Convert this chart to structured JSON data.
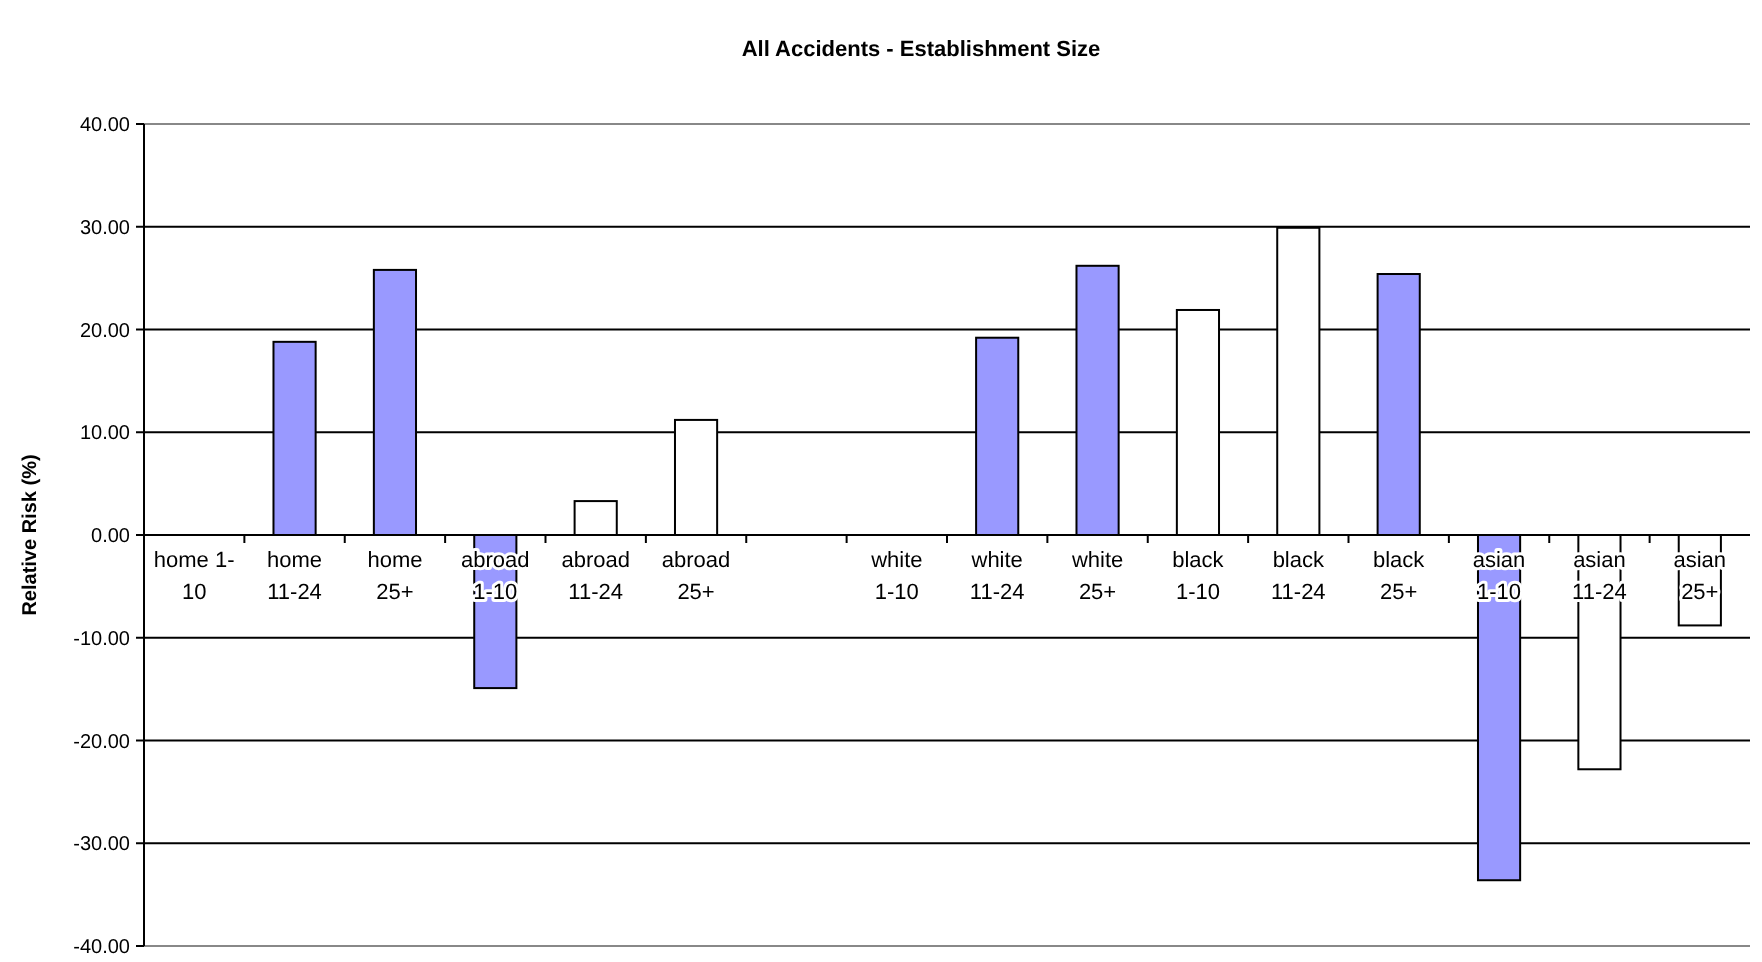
{
  "chart_data": {
    "type": "bar",
    "title": "All Accidents - Establishment Size",
    "ylabel": "Relative Risk (%)",
    "categories": [
      "home 1-10",
      "home 11-24",
      "home 25+",
      "abroad 1-10",
      "abroad 11-24",
      "abroad 25+",
      null,
      "white 1-10",
      "white 11-24",
      "white 25+",
      "black 1-10",
      "black 11-24",
      "black 25+",
      "asian 1-10",
      "asian 11-24",
      "asian 25+"
    ],
    "values": [
      null,
      18.8,
      25.8,
      -14.9,
      3.3,
      11.2,
      null,
      null,
      19.2,
      26.2,
      21.9,
      29.9,
      25.4,
      -33.6,
      -22.8,
      -8.8
    ],
    "colors": [
      null,
      "#9999ff",
      "#9999ff",
      "#9999ff",
      "#ffffff",
      "#ffffff",
      null,
      null,
      "#9999ff",
      "#9999ff",
      "#ffffff",
      "#ffffff",
      "#9999ff",
      "#9999ff",
      "#ffffff",
      "#ffffff"
    ],
    "ylim": [
      -40,
      40
    ],
    "yticks": [
      {
        "value": -40,
        "label": "-40.00"
      },
      {
        "value": -30,
        "label": "-30.00"
      },
      {
        "value": -20,
        "label": "-20.00"
      },
      {
        "value": -10,
        "label": "-10.00"
      },
      {
        "value": 0,
        "label": "0.00"
      },
      {
        "value": 10,
        "label": "10.00"
      },
      {
        "value": 20,
        "label": "20.00"
      },
      {
        "value": 30,
        "label": "30.00"
      },
      {
        "value": 40,
        "label": "40.00"
      }
    ],
    "grid": "y"
  }
}
